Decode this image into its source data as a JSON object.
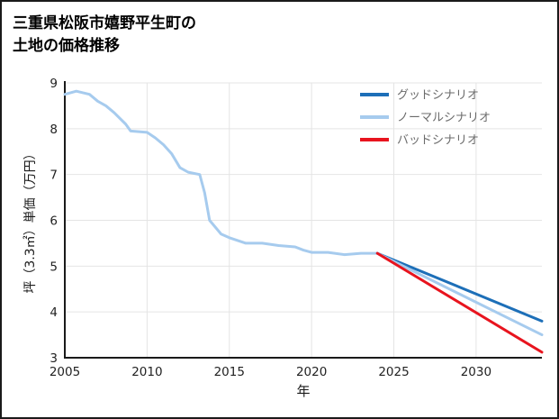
{
  "title": {
    "line1": "三重県松阪市嬉野平生町の",
    "line2": "土地の価格推移"
  },
  "chart_data": {
    "type": "line",
    "title": "三重県松阪市嬉野平生町の土地の価格推移",
    "xlabel": "年",
    "ylabel": "坪（3.3㎡）単価（万円）",
    "xlim": [
      2005,
      2034
    ],
    "ylim": [
      3,
      9
    ],
    "xticks": [
      2005,
      2010,
      2015,
      2020,
      2025,
      2030
    ],
    "yticks": [
      3,
      4,
      5,
      6,
      7,
      8,
      9
    ],
    "grid": true,
    "legend_position": "top-right",
    "colors": {
      "history": "#a6cbee",
      "good": "#1d6fb8",
      "normal": "#a6cbee",
      "bad": "#e8141e",
      "axis": "#1a1a1a",
      "grid": "#e4e4e4",
      "tick_label": "#222222",
      "legend_label": "#6b6b6b"
    },
    "history": {
      "x": [
        2005,
        2005.7,
        2006.5,
        2007,
        2007.5,
        2008,
        2008.7,
        2009,
        2010,
        2010.5,
        2011,
        2011.5,
        2012,
        2012.5,
        2013.2,
        2013.5,
        2013.8,
        2014.5,
        2015,
        2016,
        2017,
        2018,
        2019,
        2019.5,
        2020,
        2021,
        2022,
        2023,
        2024
      ],
      "y": [
        8.75,
        8.82,
        8.75,
        8.6,
        8.5,
        8.35,
        8.1,
        7.95,
        7.92,
        7.8,
        7.65,
        7.45,
        7.15,
        7.05,
        7.0,
        6.6,
        6.0,
        5.7,
        5.62,
        5.5,
        5.5,
        5.45,
        5.42,
        5.35,
        5.3,
        5.3,
        5.25,
        5.28,
        5.28
      ]
    },
    "scenarios": [
      {
        "label": "グッドシナリオ",
        "color_key": "good",
        "x": [
          2024,
          2034
        ],
        "y": [
          5.28,
          3.8
        ]
      },
      {
        "label": "ノーマルシナリオ",
        "color_key": "normal",
        "x": [
          2024,
          2034
        ],
        "y": [
          5.28,
          3.5
        ]
      },
      {
        "label": "バッドシナリオ",
        "color_key": "bad",
        "x": [
          2024,
          2034
        ],
        "y": [
          5.28,
          3.12
        ]
      }
    ]
  }
}
